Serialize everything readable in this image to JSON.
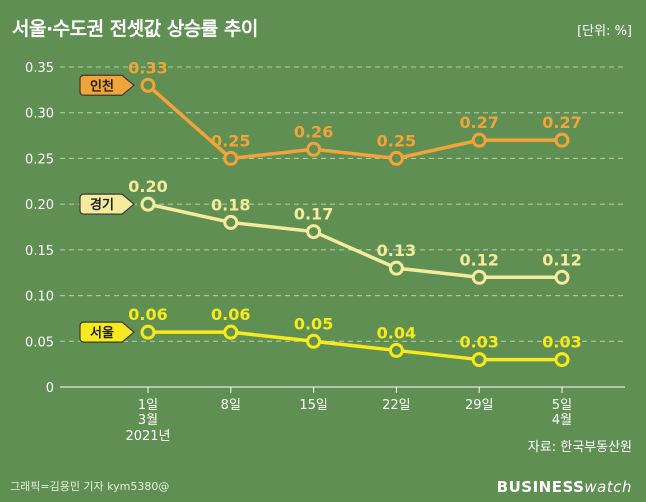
{
  "header": {
    "title": "서울·수도권 전셋값 상승률 추이",
    "unit": "[단위: %]"
  },
  "footer": {
    "source": "자료: 한국부동산원",
    "credit": "그래픽=김용민 기자 kym5380@",
    "brand_main": "BUSINESS",
    "brand_sub": "watch"
  },
  "colors": {
    "background": "#5f8f52",
    "incheon": "#f2a33a",
    "gyeonggi": "#f4ec9c",
    "seoul": "#f6ea1e",
    "grid": "#b9cfae",
    "text": "#ffffff"
  },
  "chart_data": {
    "type": "line",
    "title": "서울·수도권 전셋값 상승률 추이",
    "xlabel": "",
    "ylabel": "",
    "ylim": [
      0,
      0.35
    ],
    "yticks": [
      "0",
      "0.05",
      "0.10",
      "0.15",
      "0.20",
      "0.25",
      "0.30",
      "0.35"
    ],
    "ytick_values": [
      0,
      0.05,
      0.1,
      0.15,
      0.2,
      0.25,
      0.3,
      0.35
    ],
    "categories": [
      "1일",
      "8일",
      "15일",
      "22일",
      "29일",
      "5일"
    ],
    "category_month": [
      "3월",
      "",
      "",
      "",
      "",
      "4월"
    ],
    "category_year": [
      "2021년",
      "",
      "",
      "",
      "",
      ""
    ],
    "grid": true,
    "series": [
      {
        "name": "인천",
        "values": [
          0.33,
          0.25,
          0.26,
          0.25,
          0.27,
          0.27
        ],
        "labels": [
          "0.33",
          "0.25",
          "0.26",
          "0.25",
          "0.27",
          "0.27"
        ]
      },
      {
        "name": "경기",
        "values": [
          0.2,
          0.18,
          0.17,
          0.13,
          0.12,
          0.12
        ],
        "labels": [
          "0.20",
          "0.18",
          "0.17",
          "0.13",
          "0.12",
          "0.12"
        ]
      },
      {
        "name": "서울",
        "values": [
          0.06,
          0.06,
          0.05,
          0.04,
          0.03,
          0.03
        ],
        "labels": [
          "0.06",
          "0.06",
          "0.05",
          "0.04",
          "0.03",
          "0.03"
        ]
      }
    ]
  }
}
